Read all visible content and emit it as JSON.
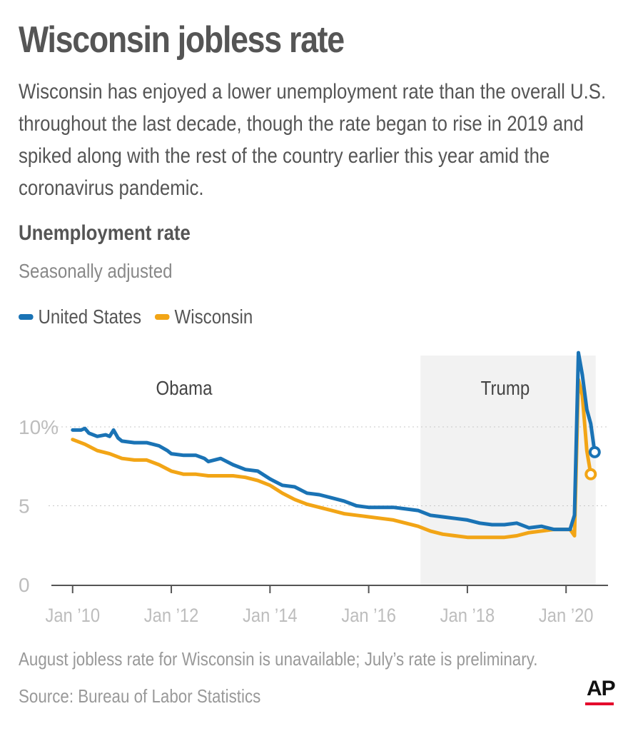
{
  "title": "Wisconsin jobless rate",
  "subtitle": "Wisconsin has enjoyed a lower unemployment rate than the overall U.S. throughout the last decade, though the rate began to rise in 2019 and spiked along with the rest of the country earlier this year amid the coronavirus pandemic.",
  "chart_title": "Unemployment rate",
  "chart_subtitle": "Seasonally adjusted",
  "legend": [
    {
      "label": "United States",
      "color": "#1a73b5"
    },
    {
      "label": "Wisconsin",
      "color": "#f2a516"
    }
  ],
  "note": "August jobless rate for Wisconsin is unavailable; July’s rate is preliminary.",
  "source": "Source:  Bureau of Labor Statistics",
  "logo_text": "AP",
  "chart_data": {
    "type": "line",
    "title": "Unemployment rate",
    "subtitle": "Seasonally adjusted",
    "xlabel": "",
    "ylabel": "",
    "ylim": [
      0,
      15
    ],
    "y_ticks": [
      0,
      5,
      10
    ],
    "y_tick_labels": [
      "0",
      "5",
      "10%"
    ],
    "x_ticks": [
      2010,
      2012,
      2014,
      2016,
      2018,
      2020
    ],
    "x_tick_labels": [
      "Jan ’10",
      "Jan ’12",
      "Jan ’14",
      "Jan ’16",
      "Jan ’18",
      "Jan ’20"
    ],
    "xlim": [
      2009.83,
      2020.85
    ],
    "grid": "dotted horizontal",
    "periods": [
      {
        "label": "Obama",
        "start": 2010.0,
        "end": 2017.05
      },
      {
        "label": "Trump",
        "start": 2017.05,
        "end": 2020.6,
        "shaded": true
      }
    ],
    "series": [
      {
        "name": "United States",
        "color": "#1a73b5",
        "end_marker": true,
        "points": [
          [
            2010.0,
            9.8
          ],
          [
            2010.17,
            9.8
          ],
          [
            2010.25,
            9.9
          ],
          [
            2010.33,
            9.6
          ],
          [
            2010.5,
            9.4
          ],
          [
            2010.67,
            9.5
          ],
          [
            2010.75,
            9.4
          ],
          [
            2010.83,
            9.8
          ],
          [
            2010.92,
            9.3
          ],
          [
            2011.0,
            9.1
          ],
          [
            2011.25,
            9.0
          ],
          [
            2011.5,
            9.0
          ],
          [
            2011.75,
            8.8
          ],
          [
            2011.92,
            8.5
          ],
          [
            2012.0,
            8.3
          ],
          [
            2012.25,
            8.2
          ],
          [
            2012.5,
            8.2
          ],
          [
            2012.67,
            8.0
          ],
          [
            2012.75,
            7.8
          ],
          [
            2013.0,
            8.0
          ],
          [
            2013.25,
            7.6
          ],
          [
            2013.5,
            7.3
          ],
          [
            2013.75,
            7.2
          ],
          [
            2014.0,
            6.7
          ],
          [
            2014.25,
            6.3
          ],
          [
            2014.5,
            6.2
          ],
          [
            2014.75,
            5.8
          ],
          [
            2015.0,
            5.7
          ],
          [
            2015.25,
            5.5
          ],
          [
            2015.5,
            5.3
          ],
          [
            2015.75,
            5.0
          ],
          [
            2016.0,
            4.9
          ],
          [
            2016.25,
            4.9
          ],
          [
            2016.5,
            4.9
          ],
          [
            2016.75,
            4.8
          ],
          [
            2017.0,
            4.7
          ],
          [
            2017.25,
            4.4
          ],
          [
            2017.5,
            4.3
          ],
          [
            2017.75,
            4.2
          ],
          [
            2018.0,
            4.1
          ],
          [
            2018.25,
            3.9
          ],
          [
            2018.5,
            3.8
          ],
          [
            2018.75,
            3.8
          ],
          [
            2019.0,
            3.9
          ],
          [
            2019.25,
            3.6
          ],
          [
            2019.5,
            3.7
          ],
          [
            2019.75,
            3.5
          ],
          [
            2020.0,
            3.5
          ],
          [
            2020.08,
            3.5
          ],
          [
            2020.17,
            4.4
          ],
          [
            2020.25,
            14.7
          ],
          [
            2020.33,
            13.3
          ],
          [
            2020.42,
            11.1
          ],
          [
            2020.5,
            10.2
          ],
          [
            2020.58,
            8.4
          ]
        ]
      },
      {
        "name": "Wisconsin",
        "color": "#f2a516",
        "end_marker": true,
        "points": [
          [
            2010.0,
            9.2
          ],
          [
            2010.25,
            8.9
          ],
          [
            2010.5,
            8.5
          ],
          [
            2010.75,
            8.3
          ],
          [
            2011.0,
            8.0
          ],
          [
            2011.25,
            7.9
          ],
          [
            2011.5,
            7.9
          ],
          [
            2011.75,
            7.6
          ],
          [
            2012.0,
            7.2
          ],
          [
            2012.25,
            7.0
          ],
          [
            2012.5,
            7.0
          ],
          [
            2012.75,
            6.9
          ],
          [
            2013.0,
            6.9
          ],
          [
            2013.25,
            6.9
          ],
          [
            2013.5,
            6.8
          ],
          [
            2013.75,
            6.6
          ],
          [
            2014.0,
            6.3
          ],
          [
            2014.25,
            5.8
          ],
          [
            2014.5,
            5.4
          ],
          [
            2014.75,
            5.1
          ],
          [
            2015.0,
            4.9
          ],
          [
            2015.25,
            4.7
          ],
          [
            2015.5,
            4.5
          ],
          [
            2015.75,
            4.4
          ],
          [
            2016.0,
            4.3
          ],
          [
            2016.25,
            4.2
          ],
          [
            2016.5,
            4.1
          ],
          [
            2016.75,
            3.9
          ],
          [
            2017.0,
            3.7
          ],
          [
            2017.25,
            3.4
          ],
          [
            2017.5,
            3.2
          ],
          [
            2017.75,
            3.1
          ],
          [
            2018.0,
            3.0
          ],
          [
            2018.25,
            3.0
          ],
          [
            2018.5,
            3.0
          ],
          [
            2018.75,
            3.0
          ],
          [
            2019.0,
            3.1
          ],
          [
            2019.25,
            3.3
          ],
          [
            2019.5,
            3.4
          ],
          [
            2019.75,
            3.5
          ],
          [
            2020.0,
            3.5
          ],
          [
            2020.08,
            3.5
          ],
          [
            2020.17,
            3.1
          ],
          [
            2020.25,
            13.0
          ],
          [
            2020.33,
            12.0
          ],
          [
            2020.42,
            8.5
          ],
          [
            2020.5,
            7.0
          ]
        ]
      }
    ]
  }
}
